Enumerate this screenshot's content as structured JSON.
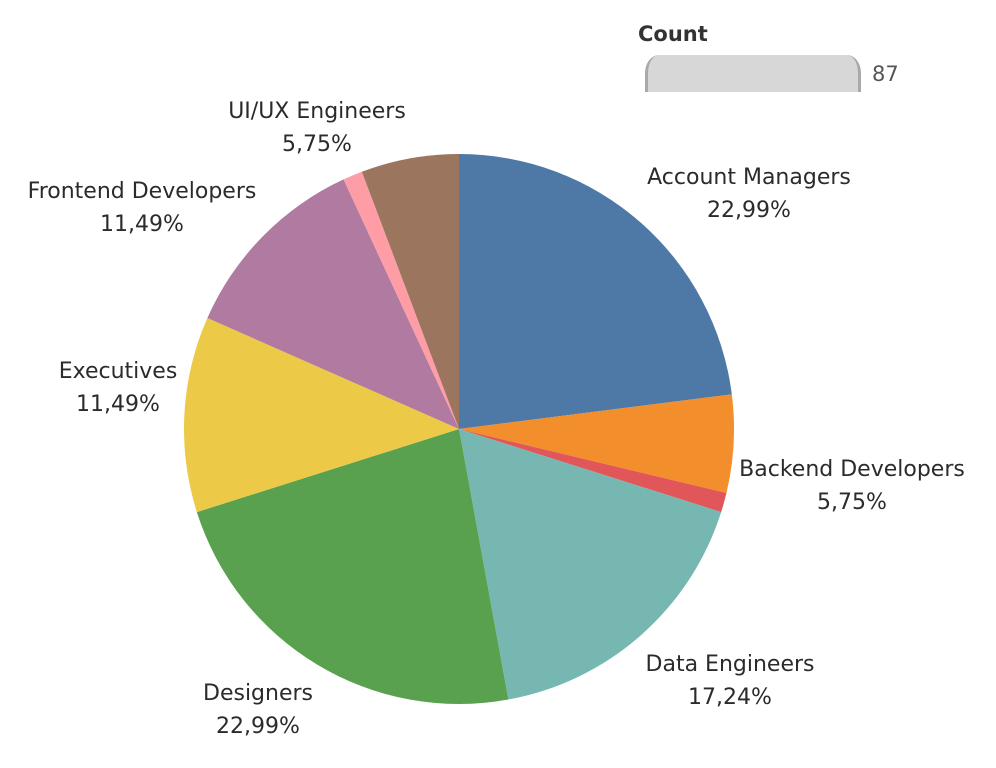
{
  "legend": {
    "title": "Count",
    "value": "87"
  },
  "chart_data": {
    "type": "pie",
    "total": 87,
    "slices": [
      {
        "name": "Account Managers",
        "value": 20,
        "label": "22,99%",
        "color": "#4e79a7"
      },
      {
        "name": "Backend Developers",
        "value": 5,
        "label": "5,75%",
        "color": "#f28e2b"
      },
      {
        "name": "",
        "value": 1,
        "label": "",
        "color": "#e15759"
      },
      {
        "name": "Data Engineers",
        "value": 15,
        "label": "17,24%",
        "color": "#76b7b2"
      },
      {
        "name": "Designers",
        "value": 20,
        "label": "22,99%",
        "color": "#59a14f"
      },
      {
        "name": "Executives",
        "value": 10,
        "label": "11,49%",
        "color": "#edc948"
      },
      {
        "name": "Frontend Developers",
        "value": 10,
        "label": "11,49%",
        "color": "#b07aa1"
      },
      {
        "name": "",
        "value": 1,
        "label": "",
        "color": "#ff9da7"
      },
      {
        "name": "UI/UX Engineers",
        "value": 5,
        "label": "5,75%",
        "color": "#9c755f"
      }
    ]
  }
}
